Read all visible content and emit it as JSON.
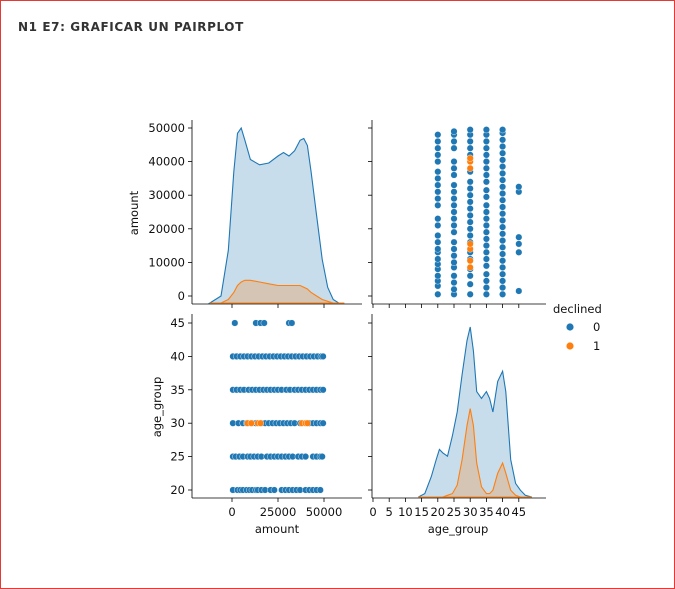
{
  "header": {
    "title": "N1 E7: GRAFICAR UN PAIRPLOT"
  },
  "colors": {
    "declined_0": "#1f77b4",
    "declined_1": "#ff7f0e",
    "frame_border": "#e53935"
  },
  "chart_data": {
    "type": "scatter",
    "subtype": "pairplot",
    "variables": [
      "amount",
      "age_group"
    ],
    "hue": "declined",
    "legend": {
      "title": "declined",
      "entries": [
        "0",
        "1"
      ],
      "placement": "right"
    },
    "axes": {
      "amount": {
        "label": "amount",
        "range": [
          -20000,
          60000
        ],
        "ticks": [
          0,
          10000,
          20000,
          30000,
          40000,
          50000
        ],
        "diag_ticks": [
          0,
          25000,
          50000
        ],
        "diag_tick_labels": [
          "0",
          "25000",
          "50000"
        ]
      },
      "age_group": {
        "label": "age_group",
        "range": [
          0,
          50
        ],
        "ticks": [
          20,
          25,
          30,
          35,
          40,
          45
        ],
        "diag_ticks": [
          0,
          5,
          10,
          15,
          20,
          25,
          30,
          35,
          40,
          45
        ]
      }
    },
    "kde": {
      "amount": {
        "x": [
          -12000,
          -6000,
          -2000,
          1000,
          3000,
          5000,
          7000,
          10000,
          15000,
          20000,
          25000,
          28000,
          31000,
          34000,
          37000,
          39000,
          41000,
          43000,
          46000,
          49000,
          52000,
          55000,
          58000,
          61000
        ],
        "series": [
          {
            "name": "0",
            "values": [
              0.0,
              0.04,
              0.3,
              0.75,
              0.97,
              1.0,
              0.93,
              0.82,
              0.79,
              0.8,
              0.84,
              0.86,
              0.84,
              0.87,
              0.93,
              0.94,
              0.9,
              0.75,
              0.5,
              0.25,
              0.09,
              0.02,
              0.0,
              0.0
            ]
          },
          {
            "name": "1",
            "values": [
              0.0,
              0.0,
              0.02,
              0.06,
              0.1,
              0.12,
              0.13,
              0.13,
              0.12,
              0.11,
              0.1,
              0.1,
              0.1,
              0.1,
              0.1,
              0.09,
              0.08,
              0.06,
              0.04,
              0.02,
              0.01,
              0.0,
              0.0,
              0.0
            ]
          }
        ]
      },
      "age_group": {
        "x": [
          14,
          16,
          18,
          19.5,
          20.5,
          21.5,
          23,
          24.5,
          26,
          27.5,
          29,
          30,
          31,
          32,
          33.5,
          35,
          36,
          37,
          38.5,
          40,
          41,
          42.5,
          44,
          45.5,
          47,
          49
        ],
        "series": [
          {
            "name": "0",
            "values": [
              0.0,
              0.02,
              0.12,
              0.22,
              0.28,
              0.26,
              0.24,
              0.36,
              0.5,
              0.72,
              0.92,
              1.0,
              0.86,
              0.62,
              0.58,
              0.62,
              0.58,
              0.5,
              0.68,
              0.74,
              0.62,
              0.22,
              0.08,
              0.04,
              0.01,
              0.0
            ]
          },
          {
            "name": "1",
            "values": [
              0.0,
              0.0,
              0.0,
              0.0,
              0.0,
              0.0,
              0.01,
              0.02,
              0.07,
              0.22,
              0.42,
              0.52,
              0.42,
              0.2,
              0.06,
              0.02,
              0.02,
              0.04,
              0.14,
              0.2,
              0.14,
              0.04,
              0.01,
              0.0,
              0.0,
              0.0
            ]
          }
        ]
      }
    },
    "scatter_points": {
      "declined_0": [
        [
          500,
          20
        ],
        [
          3000,
          20
        ],
        [
          4500,
          20
        ],
        [
          6000,
          20
        ],
        [
          8000,
          20
        ],
        [
          9500,
          20
        ],
        [
          11000,
          20
        ],
        [
          13000,
          20
        ],
        [
          14000,
          20
        ],
        [
          16000,
          20
        ],
        [
          18000,
          20
        ],
        [
          21000,
          20
        ],
        [
          23000,
          20
        ],
        [
          27000,
          20
        ],
        [
          29000,
          20
        ],
        [
          31000,
          20
        ],
        [
          33000,
          20
        ],
        [
          35000,
          20
        ],
        [
          37000,
          20
        ],
        [
          40000,
          20
        ],
        [
          42000,
          20
        ],
        [
          44000,
          20
        ],
        [
          46000,
          20
        ],
        [
          48000,
          20
        ],
        [
          500,
          25
        ],
        [
          2000,
          25
        ],
        [
          4000,
          25
        ],
        [
          6000,
          25
        ],
        [
          8500,
          25
        ],
        [
          10000,
          25
        ],
        [
          12000,
          25
        ],
        [
          14000,
          25
        ],
        [
          16000,
          25
        ],
        [
          19000,
          25
        ],
        [
          21000,
          25
        ],
        [
          23000,
          25
        ],
        [
          25000,
          25
        ],
        [
          27000,
          25
        ],
        [
          29000,
          25
        ],
        [
          31000,
          25
        ],
        [
          33000,
          25
        ],
        [
          36000,
          25
        ],
        [
          38000,
          25
        ],
        [
          40000,
          25
        ],
        [
          44000,
          25
        ],
        [
          46000,
          25
        ],
        [
          48000,
          25
        ],
        [
          49000,
          25
        ],
        [
          500,
          30
        ],
        [
          3500,
          30
        ],
        [
          6000,
          30
        ],
        [
          8000,
          30
        ],
        [
          11000,
          30
        ],
        [
          13000,
          30
        ],
        [
          16000,
          30
        ],
        [
          18000,
          30
        ],
        [
          20000,
          30
        ],
        [
          22000,
          30
        ],
        [
          24000,
          30
        ],
        [
          26000,
          30
        ],
        [
          28000,
          30
        ],
        [
          30000,
          30
        ],
        [
          32000,
          30
        ],
        [
          34000,
          30
        ],
        [
          37000,
          30
        ],
        [
          42000,
          30
        ],
        [
          44000,
          30
        ],
        [
          46000,
          30
        ],
        [
          48000,
          30
        ],
        [
          49500,
          30
        ],
        [
          500,
          35
        ],
        [
          2500,
          35
        ],
        [
          4500,
          35
        ],
        [
          6500,
          35
        ],
        [
          9000,
          35
        ],
        [
          11000,
          35
        ],
        [
          13000,
          35
        ],
        [
          15000,
          35
        ],
        [
          17000,
          35
        ],
        [
          19000,
          35
        ],
        [
          21000,
          35
        ],
        [
          23000,
          35
        ],
        [
          25000,
          35
        ],
        [
          27000,
          35
        ],
        [
          29500,
          35
        ],
        [
          31500,
          35
        ],
        [
          34000,
          35
        ],
        [
          36000,
          35
        ],
        [
          38000,
          35
        ],
        [
          40000,
          35
        ],
        [
          42000,
          35
        ],
        [
          44000,
          35
        ],
        [
          46000,
          35
        ],
        [
          48000,
          35
        ],
        [
          49500,
          35
        ],
        [
          500,
          40
        ],
        [
          2500,
          40
        ],
        [
          4500,
          40
        ],
        [
          6500,
          40
        ],
        [
          8500,
          40
        ],
        [
          10500,
          40
        ],
        [
          12500,
          40
        ],
        [
          14500,
          40
        ],
        [
          16500,
          40
        ],
        [
          18500,
          40
        ],
        [
          20500,
          40
        ],
        [
          22500,
          40
        ],
        [
          24500,
          40
        ],
        [
          26500,
          40
        ],
        [
          28500,
          40
        ],
        [
          30500,
          40
        ],
        [
          32500,
          40
        ],
        [
          34500,
          40
        ],
        [
          36500,
          40
        ],
        [
          38500,
          40
        ],
        [
          40500,
          40
        ],
        [
          42500,
          40
        ],
        [
          44500,
          40
        ],
        [
          46500,
          40
        ],
        [
          48500,
          40
        ],
        [
          49500,
          40
        ],
        [
          1500,
          45
        ],
        [
          13000,
          45
        ],
        [
          15500,
          45
        ],
        [
          17500,
          45
        ],
        [
          31000,
          45
        ],
        [
          32500,
          45
        ]
      ],
      "declined_1": [
        [
          8500,
          30
        ],
        [
          10500,
          30
        ],
        [
          14000,
          30
        ],
        [
          15500,
          30
        ],
        [
          38000,
          30
        ],
        [
          40000,
          30
        ],
        [
          41000,
          30
        ]
      ]
    }
  }
}
